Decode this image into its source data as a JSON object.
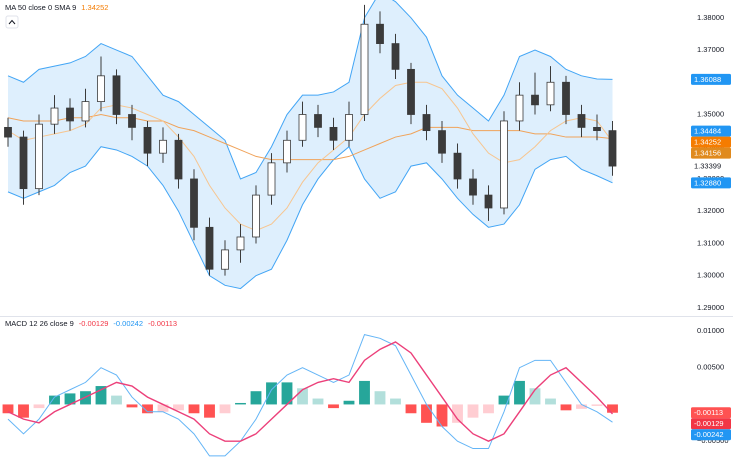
{
  "chart_data": [
    {
      "type": "candlestick",
      "title": "MA 50 close 0 SMA 9",
      "title_value": {
        "value": 1.34252,
        "color": "#f57c00"
      },
      "open": [
        1.346,
        1.343,
        1.327,
        1.347,
        1.352,
        1.348,
        1.354,
        1.362,
        1.35,
        1.346,
        1.338,
        1.342,
        1.33,
        1.315,
        1.302,
        1.308,
        1.312,
        1.325,
        1.335,
        1.342,
        1.35,
        1.346,
        1.342,
        1.35,
        1.378,
        1.372,
        1.364,
        1.35,
        1.345,
        1.338,
        1.33,
        1.325,
        1.321,
        1.348,
        1.356,
        1.353,
        1.36,
        1.35,
        1.346,
        1.345
      ],
      "high": [
        1.349,
        1.345,
        1.35,
        1.356,
        1.355,
        1.358,
        1.368,
        1.364,
        1.353,
        1.348,
        1.346,
        1.344,
        1.333,
        1.318,
        1.311,
        1.316,
        1.328,
        1.338,
        1.345,
        1.354,
        1.353,
        1.349,
        1.354,
        1.384,
        1.382,
        1.375,
        1.366,
        1.353,
        1.348,
        1.341,
        1.333,
        1.328,
        1.351,
        1.36,
        1.363,
        1.365,
        1.362,
        1.353,
        1.35,
        1.348
      ],
      "low": [
        1.34,
        1.322,
        1.325,
        1.344,
        1.345,
        1.346,
        1.351,
        1.347,
        1.342,
        1.334,
        1.335,
        1.327,
        1.311,
        1.3,
        1.3,
        1.304,
        1.31,
        1.322,
        1.332,
        1.34,
        1.343,
        1.339,
        1.34,
        1.348,
        1.369,
        1.361,
        1.347,
        1.342,
        1.335,
        1.327,
        1.322,
        1.317,
        1.319,
        1.345,
        1.35,
        1.351,
        1.347,
        1.343,
        1.342,
        1.331
      ],
      "close": [
        1.343,
        1.327,
        1.347,
        1.352,
        1.348,
        1.354,
        1.362,
        1.35,
        1.346,
        1.338,
        1.342,
        1.33,
        1.315,
        1.302,
        1.308,
        1.312,
        1.325,
        1.335,
        1.342,
        1.35,
        1.346,
        1.342,
        1.35,
        1.378,
        1.372,
        1.364,
        1.35,
        1.345,
        1.338,
        1.33,
        1.325,
        1.321,
        1.348,
        1.356,
        1.353,
        1.36,
        1.35,
        1.346,
        1.345,
        1.334
      ],
      "up_color": "#ffffff",
      "down_color": "#3b3b3b",
      "outline_color": "#3b3b3b",
      "bands": {
        "color": "#42a5f5",
        "fill": "rgba(33,150,243,0.15)",
        "upper": [
          1.362,
          1.36,
          1.364,
          1.365,
          1.366,
          1.368,
          1.372,
          1.37,
          1.368,
          1.362,
          1.356,
          1.354,
          1.35,
          1.346,
          1.342,
          1.33,
          1.332,
          1.34,
          1.35,
          1.356,
          1.356,
          1.357,
          1.36,
          1.38,
          1.388,
          1.385,
          1.38,
          1.374,
          1.362,
          1.356,
          1.352,
          1.348,
          1.356,
          1.368,
          1.37,
          1.368,
          1.364,
          1.362,
          1.361,
          1.36088
        ],
        "lower": [
          1.326,
          1.324,
          1.326,
          1.328,
          1.332,
          1.334,
          1.34,
          1.339,
          1.337,
          1.334,
          1.328,
          1.32,
          1.31,
          1.3,
          1.297,
          1.296,
          1.3,
          1.302,
          1.311,
          1.322,
          1.33,
          1.336,
          1.34,
          1.33,
          1.324,
          1.326,
          1.334,
          1.335,
          1.33,
          1.324,
          1.319,
          1.315,
          1.316,
          1.322,
          1.333,
          1.336,
          1.337,
          1.333,
          1.331,
          1.3288
        ]
      },
      "series": [
        {
          "color": "#f0a35a",
          "values": [
            1.349,
            1.348,
            1.348,
            1.348,
            1.349,
            1.349,
            1.35,
            1.349,
            1.349,
            1.348,
            1.348,
            1.346,
            1.345,
            1.343,
            1.341,
            1.339,
            1.337,
            1.336,
            1.336,
            1.336,
            1.336,
            1.336,
            1.337,
            1.339,
            1.341,
            1.343,
            1.344,
            1.346,
            1.346,
            1.346,
            1.345,
            1.345,
            1.345,
            1.345,
            1.344,
            1.344,
            1.343,
            1.343,
            1.343,
            1.34252
          ]
        },
        {
          "color": "#f7c58f",
          "values": [
            1.345,
            1.342,
            1.343,
            1.344,
            1.345,
            1.347,
            1.352,
            1.353,
            1.352,
            1.35,
            1.348,
            1.343,
            1.337,
            1.328,
            1.321,
            1.316,
            1.314,
            1.316,
            1.321,
            1.329,
            1.335,
            1.339,
            1.343,
            1.35,
            1.355,
            1.359,
            1.36,
            1.36,
            1.358,
            1.352,
            1.344,
            1.338,
            1.335,
            1.336,
            1.34,
            1.345,
            1.348,
            1.349,
            1.348,
            1.34156
          ]
        }
      ],
      "ylim": [
        1.2878,
        1.3849
      ],
      "yticks": [
        {
          "value": 1.29,
          "label": "1.29000"
        },
        {
          "value": 1.3,
          "label": "1.30000"
        },
        {
          "value": 1.31,
          "label": "1.31000"
        },
        {
          "value": 1.32,
          "label": "1.32000"
        },
        {
          "value": 1.33,
          "label": "1.33000"
        },
        {
          "value": 1.34,
          "label": "1.34000"
        },
        {
          "value": 1.35,
          "label": "1.35000"
        },
        {
          "value": 1.36,
          "label": "1.36000"
        },
        {
          "value": 1.37,
          "label": "1.37000"
        },
        {
          "value": 1.38,
          "label": "1.38000"
        }
      ],
      "grid": false,
      "last_labels": [
        {
          "value": 1.36088,
          "color": "#2196f3"
        },
        {
          "value": 1.34484,
          "color": "#2196f3"
        },
        {
          "value": 1.34252,
          "color": "#f57c00"
        },
        {
          "value": 1.34156,
          "color": "#e08a1e"
        },
        {
          "value": 1.33399,
          "color": "#ffffff"
        },
        {
          "value": 1.3288,
          "label": "1.32880",
          "color": "#2196f3"
        }
      ]
    },
    {
      "type": "macd",
      "title": "MACD 12 26 close 9",
      "header_values": [
        {
          "value": -0.00129,
          "color": "#f23645"
        },
        {
          "value": -0.00242,
          "color": "#2196f3"
        },
        {
          "value": -0.00113,
          "color": "#f23645"
        }
      ],
      "histogram": [
        -0.0012,
        -0.0018,
        -0.0005,
        0.0012,
        0.0015,
        0.0018,
        0.0025,
        0.0012,
        -0.0004,
        -0.0012,
        -0.001,
        -0.0008,
        -0.0012,
        -0.0018,
        -0.0012,
        0.0002,
        0.0018,
        0.003,
        0.003,
        0.0022,
        0.0008,
        -0.0005,
        0.0005,
        0.0032,
        0.0018,
        0.0008,
        -0.0012,
        -0.0025,
        -0.003,
        -0.0025,
        -0.0018,
        -0.0012,
        0.0012,
        0.0032,
        0.0022,
        0.0008,
        -0.0008,
        -0.0006,
        -0.0002,
        -0.00113
      ],
      "histogram_colors": [
        "#26a69a",
        "#b2dfdb",
        "#ff5252",
        "#ffcdd2"
      ],
      "series": [
        {
          "color": "#64b5f6",
          "values": [
            -0.002,
            -0.004,
            -0.002,
            0.001,
            0.002,
            0.003,
            0.005,
            0.004,
            0.001,
            -0.001,
            -0.001,
            -0.002,
            -0.004,
            -0.007,
            -0.007,
            -0.005,
            -0.002,
            0.002,
            0.004,
            0.005,
            0.004,
            0.003,
            0.004,
            0.0095,
            0.009,
            0.008,
            0.004,
            0.0,
            -0.003,
            -0.005,
            -0.006,
            -0.006,
            -0.001,
            0.005,
            0.006,
            0.006,
            0.003,
            0.0,
            -0.001,
            -0.00242
          ]
        },
        {
          "color": "#ec407a",
          "values": [
            -0.001,
            -0.002,
            -0.0025,
            -0.001,
            0.0,
            0.001,
            0.002,
            0.003,
            0.0025,
            0.001,
            0.0,
            -0.001,
            -0.002,
            -0.004,
            -0.005,
            -0.005,
            -0.004,
            -0.002,
            0.0,
            0.002,
            0.003,
            0.0035,
            0.003,
            0.006,
            0.0075,
            0.0085,
            0.007,
            0.004,
            0.001,
            -0.002,
            -0.004,
            -0.005,
            -0.004,
            -0.001,
            0.002,
            0.004,
            0.005,
            0.003,
            0.001,
            -0.00129
          ]
        }
      ],
      "ylim": [
        -0.00824,
        0.01176
      ],
      "yticks": [
        {
          "value": -0.005,
          "label": "−0.00500"
        },
        {
          "value": 0.005,
          "label": "0.00500"
        },
        {
          "value": 0.01,
          "label": "0.01000"
        }
      ],
      "grid": false,
      "last_labels": [
        {
          "value": -0.00113,
          "color": "#ff5252"
        },
        {
          "value": -0.00129,
          "color": "#f23645"
        },
        {
          "value": -0.00242,
          "color": "#2196f3"
        }
      ]
    }
  ]
}
